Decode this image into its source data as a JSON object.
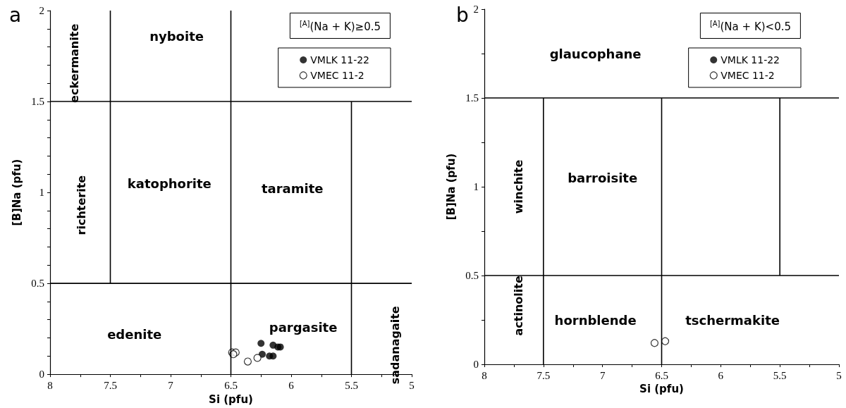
{
  "chart_data": [
    {
      "type": "scatter",
      "title": "a",
      "xlabel": "Si (pfu)",
      "ylabel": "[B]Na (pfu)",
      "legend_title": "$^{[A]}$(Na + K)≥0.5",
      "legend": "top right",
      "grid": false,
      "xlim": [
        8,
        5
      ],
      "ylim": [
        0,
        2
      ],
      "xticks": [
        8,
        {
          "value": 7.75,
          "label": null
        },
        7.5,
        {
          "value": 7.25,
          "label": null
        },
        7,
        {
          "value": 6.75,
          "label": null
        },
        6.5,
        {
          "value": 6.25,
          "label": null
        },
        6,
        {
          "value": 5.75,
          "label": null
        },
        5.5,
        {
          "value": 5.25,
          "label": null
        },
        5
      ],
      "yticks": [
        0,
        {
          "value": 0.1,
          "label": null
        },
        {
          "value": 0.2,
          "label": null
        },
        {
          "value": 0.3,
          "label": null
        },
        {
          "value": 0.4,
          "label": null
        },
        0.5,
        {
          "value": 0.6,
          "label": null
        },
        {
          "value": 0.7,
          "label": null
        },
        {
          "value": 0.8,
          "label": null
        },
        {
          "value": 0.9,
          "label": null
        },
        1,
        {
          "value": 1.1,
          "label": null
        },
        {
          "value": 1.2,
          "label": null
        },
        {
          "value": 1.3,
          "label": null
        },
        {
          "value": 1.4,
          "label": null
        },
        1.5,
        {
          "value": 1.6,
          "label": null
        },
        {
          "value": 1.7,
          "label": null
        },
        {
          "value": 1.8,
          "label": null
        },
        {
          "value": 1.9,
          "label": null
        },
        2
      ],
      "series": [
        {
          "name": "VMLK 11-22",
          "color": "#000000",
          "marker": "circle",
          "x": [
            6.25,
            6.24,
            6.18,
            6.15,
            6.15,
            6.11,
            6.09
          ],
          "values": [
            0.17,
            0.11,
            0.1,
            0.16,
            0.1,
            0.15,
            0.15
          ]
        },
        {
          "name": "VMEC 11-2",
          "color": "#000000",
          "marker": "circle",
          "x": [
            6.49,
            6.46,
            6.48,
            6.36,
            6.28
          ],
          "values": [
            0.12,
            0.12,
            0.11,
            0.07,
            0.09
          ]
        },
        {
          "type": "line",
          "color": "#000000",
          "marker": "none",
          "x": [
            8,
            5
          ],
          "values": [
            1.5,
            1.5
          ]
        },
        {
          "type": "line",
          "color": "#000000",
          "marker": "none",
          "x": [
            8,
            5
          ],
          "values": [
            0.5,
            0.5
          ]
        },
        {
          "type": "line",
          "color": "#000000",
          "marker": "none",
          "x": [
            7.5,
            7.5
          ],
          "values": [
            0.5,
            2
          ]
        },
        {
          "type": "line",
          "color": "#000000",
          "marker": "none",
          "x": [
            6.5,
            6.5
          ],
          "values": [
            0,
            2
          ]
        },
        {
          "type": "line",
          "color": "#000000",
          "marker": "none",
          "x": [
            5.5,
            5.5
          ],
          "values": [
            0,
            1.5
          ]
        }
      ],
      "annotations": [
        "nyboite",
        "eckermanite",
        "katophorite",
        "taramite",
        "richterite",
        "edenite",
        "pargasite",
        "sadanagaite"
      ]
    },
    {
      "type": "scatter",
      "title": "b",
      "xlabel": "Si (pfu)",
      "ylabel": "[B]Na (pfu)",
      "legend_title": "$^{[A]}$(Na + K)<0.5",
      "legend": "top right",
      "grid": false,
      "xlim": [
        8,
        5
      ],
      "ylim": [
        0,
        2
      ],
      "xticks": [
        8,
        {
          "value": 7.75,
          "label": null
        },
        7.5,
        {
          "value": 7.25,
          "label": null
        },
        7,
        {
          "value": 6.75,
          "label": null
        },
        6.5,
        {
          "value": 6.25,
          "label": null
        },
        6,
        {
          "value": 5.75,
          "label": null
        },
        5.5,
        {
          "value": 5.25,
          "label": null
        },
        5
      ],
      "yticks": [
        0,
        {
          "value": 0.25,
          "label": null
        },
        0.5,
        {
          "value": 0.75,
          "label": null
        },
        1,
        {
          "value": 1.25,
          "label": null
        },
        1.5,
        {
          "value": 1.75,
          "label": null
        },
        2
      ],
      "series": [
        {
          "name": "VMLK 11-22",
          "color": "#000000",
          "marker": "circle"
        },
        {
          "name": "VMEC 11-2",
          "color": "#000000",
          "marker": "circle",
          "x": [
            6.56,
            6.47
          ],
          "values": [
            0.12,
            0.13
          ]
        },
        {
          "type": "line",
          "color": "#000000",
          "marker": "none",
          "x": [
            8,
            5
          ],
          "values": [
            1.5,
            1.5
          ]
        },
        {
          "type": "line",
          "color": "#000000",
          "marker": "none",
          "x": [
            8,
            5
          ],
          "values": [
            0.5,
            0.5
          ]
        },
        {
          "type": "line",
          "color": "#000000",
          "marker": "none",
          "x": [
            7.5,
            7.5
          ],
          "values": [
            0,
            1.5
          ]
        },
        {
          "type": "line",
          "color": "#000000",
          "marker": "none",
          "x": [
            6.5,
            6.5
          ],
          "values": [
            0,
            1.5
          ]
        },
        {
          "type": "line",
          "color": "#000000",
          "marker": "none",
          "x": [
            5.5,
            5.5
          ],
          "values": [
            0.5,
            1.5
          ]
        }
      ],
      "annotations": [
        "glaucophane",
        "winchite",
        "barroisite",
        "actinolite",
        "hornblende",
        "tschermakite"
      ]
    }
  ]
}
